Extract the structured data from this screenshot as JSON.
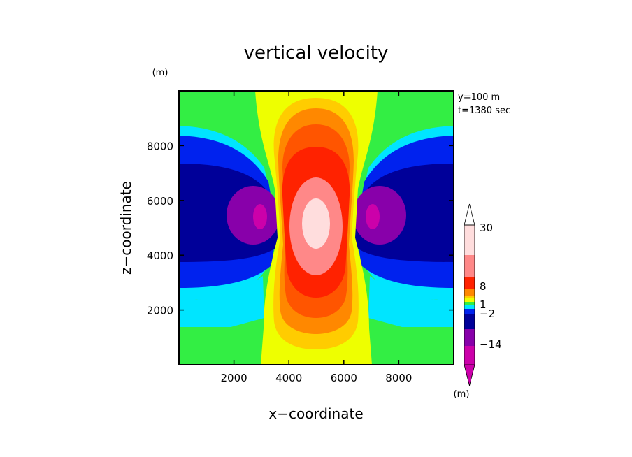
{
  "chart_data": {
    "type": "heatmap",
    "subtype": "filled-contour",
    "title": "vertical velocity",
    "xlabel": "x−coordinate",
    "ylabel": "z−coordinate",
    "y_unit": "(m)",
    "annotations": [
      "y=100 m",
      "t=1380 sec"
    ],
    "xlim": [
      0,
      10000
    ],
    "ylim": [
      0,
      10000
    ],
    "x_ticks": [
      2000,
      4000,
      6000,
      8000
    ],
    "y_ticks": [
      2000,
      4000,
      6000,
      8000
    ],
    "grid": false,
    "field": {
      "description_values": "vertical velocity, symmetric about x=5000",
      "updraft_center": [
        5000,
        5200
      ],
      "updraft_max_level": 30,
      "downdraft_centers": [
        [
          3000,
          5400
        ],
        [
          7000,
          5400
        ]
      ],
      "downdraft_min_level": -14
    },
    "colorbar": {
      "unit": "(m)",
      "tick_labels": [
        "30",
        "8",
        "1",
        "−2",
        "−14"
      ],
      "bands": [
        {
          "color": "#cc00aa"
        },
        {
          "color": "#8800aa"
        },
        {
          "color": "#000099"
        },
        {
          "color": "#0022ee"
        },
        {
          "color": "#00e5ff"
        },
        {
          "color": "#33ee44"
        },
        {
          "color": "#eeff00"
        },
        {
          "color": "#ffcc00"
        },
        {
          "color": "#ff8800"
        },
        {
          "color": "#ff2200"
        },
        {
          "color": "#ff8888"
        },
        {
          "color": "#ffdddd"
        }
      ]
    }
  }
}
